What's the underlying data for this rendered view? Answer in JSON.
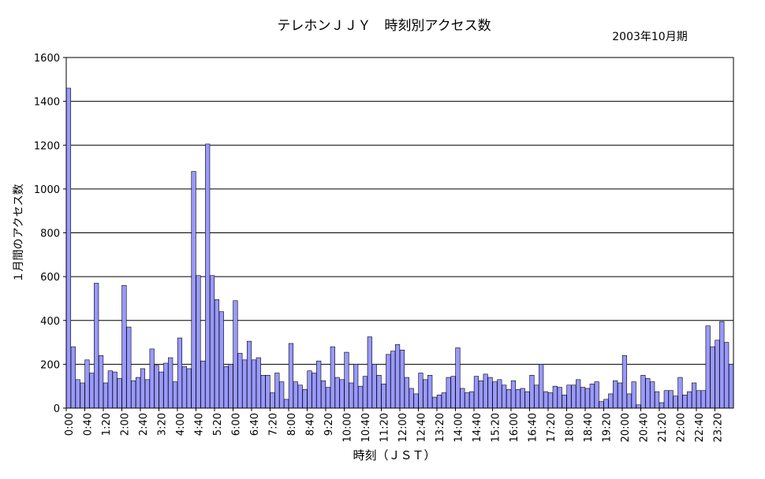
{
  "chart_data": {
    "type": "bar",
    "title": "テレホンＪＪＹ　時刻別アクセス数",
    "subtitle": "2003年10月期",
    "xlabel": "時刻（ＪＳＴ）",
    "ylabel": "１月間のアクセス数",
    "ylim": [
      0,
      1600
    ],
    "yticks": [
      "0",
      "200",
      "400",
      "600",
      "800",
      "1000",
      "1200",
      "1400",
      "1600"
    ],
    "grid": true,
    "legend": "none",
    "bar_color": "#9999ff",
    "bar_border": "#000000",
    "x_tick_labels": [
      "0:00",
      "0:40",
      "1:20",
      "2:00",
      "2:40",
      "3:20",
      "4:00",
      "4:40",
      "5:20",
      "6:00",
      "6:40",
      "7:20",
      "8:00",
      "8:40",
      "9:20",
      "10:00",
      "10:40",
      "11:20",
      "12:00",
      "12:40",
      "13:20",
      "14:00",
      "14:40",
      "15:20",
      "16:00",
      "16:40",
      "17:20",
      "18:00",
      "18:40",
      "19:20",
      "20:00",
      "20:40",
      "21:20",
      "22:00",
      "22:40",
      "23:20"
    ],
    "values": [
      1460,
      280,
      130,
      115,
      220,
      160,
      570,
      240,
      115,
      170,
      165,
      135,
      560,
      370,
      125,
      140,
      180,
      130,
      270,
      195,
      165,
      205,
      230,
      120,
      320,
      190,
      180,
      1080,
      605,
      215,
      1205,
      605,
      495,
      440,
      190,
      200,
      490,
      250,
      220,
      305,
      220,
      230,
      150,
      150,
      70,
      160,
      120,
      40,
      295,
      120,
      105,
      85,
      170,
      160,
      215,
      125,
      95,
      280,
      140,
      130,
      255,
      115,
      200,
      100,
      145,
      325,
      200,
      150,
      110,
      245,
      260,
      290,
      265,
      140,
      90,
      65,
      160,
      130,
      150,
      50,
      60,
      70,
      140,
      145,
      275,
      90,
      70,
      75,
      145,
      125,
      155,
      140,
      120,
      130,
      105,
      85,
      125,
      85,
      90,
      75,
      150,
      105,
      200,
      75,
      70,
      100,
      95,
      60,
      105,
      105,
      130,
      95,
      90,
      110,
      120,
      30,
      40,
      65,
      125,
      115,
      240,
      65,
      120,
      15,
      150,
      135,
      120,
      75,
      25,
      80,
      80,
      55,
      140,
      60,
      75,
      115,
      80,
      80,
      375,
      280,
      310,
      395,
      300,
      200
    ]
  }
}
